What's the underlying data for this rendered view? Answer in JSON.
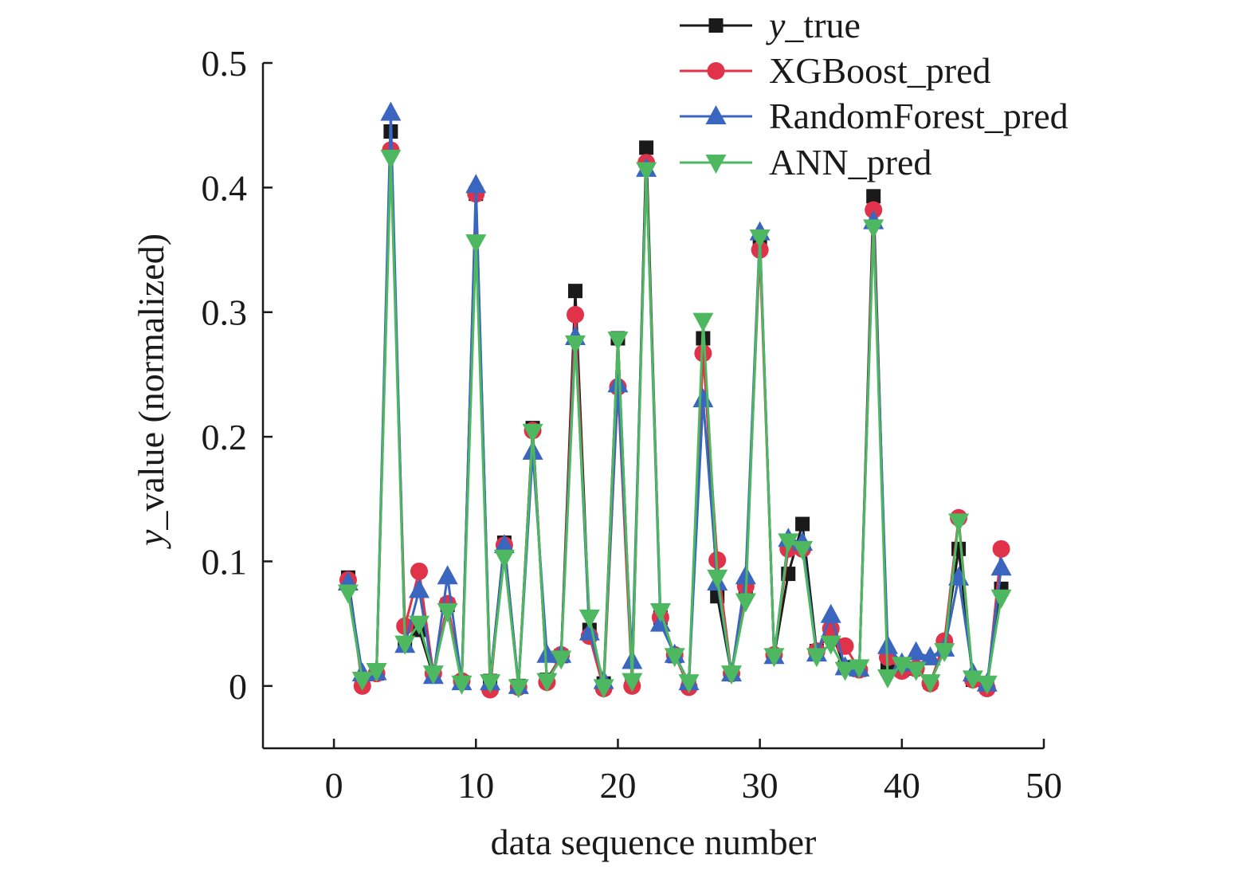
{
  "chart_data": {
    "type": "line",
    "xlabel": "data sequence number",
    "ylabel_italic": "y",
    "ylabel_rest": "_value (normalized)",
    "xlim": [
      -5,
      50
    ],
    "ylim": [
      -0.05,
      0.5
    ],
    "xticks": [
      0,
      10,
      20,
      30,
      40,
      50
    ],
    "xtick_labels": [
      "0",
      "10",
      "20",
      "30",
      "40",
      "50"
    ],
    "yticks": [
      0,
      0.1,
      0.2,
      0.3,
      0.4,
      0.5
    ],
    "ytick_labels": [
      "0",
      "0.1",
      "0.2",
      "0.3",
      "0.4",
      "0.5"
    ],
    "grid": false,
    "legend_position": "top-right",
    "x": [
      1,
      2,
      3,
      4,
      5,
      6,
      7,
      8,
      9,
      10,
      11,
      12,
      13,
      14,
      15,
      16,
      17,
      18,
      19,
      20,
      21,
      22,
      23,
      24,
      25,
      26,
      27,
      28,
      29,
      30,
      31,
      32,
      33,
      34,
      35,
      36,
      37,
      38,
      39,
      40,
      41,
      42,
      43,
      44,
      45,
      46,
      47
    ],
    "series": [
      {
        "name_italic": "y",
        "name_rest": "_true",
        "color": "#1a1a1a",
        "marker": "square",
        "values": [
          0.087,
          0.005,
          0.01,
          0.445,
          0.033,
          0.045,
          0.008,
          0.065,
          0.003,
          0.395,
          0.004,
          0.115,
          0.0,
          0.207,
          0.005,
          0.024,
          0.317,
          0.045,
          0.002,
          0.279,
          0.002,
          0.432,
          0.055,
          0.024,
          0.002,
          0.279,
          0.072,
          0.01,
          0.08,
          0.36,
          0.024,
          0.09,
          0.13,
          0.028,
          0.044,
          0.015,
          0.013,
          0.393,
          0.014,
          0.013,
          0.014,
          0.003,
          0.033,
          0.11,
          0.005,
          0.0,
          0.078
        ]
      },
      {
        "name": "XGBoost_pred",
        "color": "#e03248",
        "marker": "circle",
        "values": [
          0.085,
          0.0,
          0.01,
          0.43,
          0.048,
          0.092,
          0.01,
          0.066,
          0.004,
          0.395,
          -0.003,
          0.113,
          -0.001,
          0.205,
          0.003,
          0.025,
          0.298,
          0.04,
          -0.002,
          0.24,
          0.0,
          0.42,
          0.055,
          0.025,
          -0.001,
          0.267,
          0.101,
          0.01,
          0.08,
          0.35,
          0.025,
          0.11,
          0.11,
          0.028,
          0.046,
          0.032,
          0.013,
          0.382,
          0.023,
          0.012,
          0.014,
          0.002,
          0.036,
          0.135,
          0.005,
          -0.002,
          0.11
        ]
      },
      {
        "name": "RandomForest_pred",
        "color": "#3a66c0",
        "marker": "triangle-up",
        "values": [
          0.083,
          0.01,
          0.011,
          0.46,
          0.033,
          0.077,
          0.008,
          0.088,
          0.003,
          0.402,
          0.003,
          0.113,
          0.0,
          0.188,
          0.025,
          0.025,
          0.28,
          0.043,
          0.004,
          0.242,
          0.02,
          0.415,
          0.05,
          0.025,
          0.003,
          0.23,
          0.083,
          0.01,
          0.088,
          0.364,
          0.024,
          0.118,
          0.115,
          0.026,
          0.057,
          0.015,
          0.014,
          0.373,
          0.032,
          0.018,
          0.027,
          0.023,
          0.03,
          0.087,
          0.01,
          0.002,
          0.095
        ]
      },
      {
        "name": "ANN_pred",
        "color": "#4db860",
        "marker": "triangle-down",
        "values": [
          0.075,
          0.005,
          0.012,
          0.424,
          0.034,
          0.05,
          0.01,
          0.06,
          0.002,
          0.356,
          0.003,
          0.103,
          -0.001,
          0.204,
          0.004,
          0.022,
          0.275,
          0.055,
          -0.001,
          0.278,
          0.004,
          0.414,
          0.06,
          0.024,
          0.003,
          0.293,
          0.087,
          0.01,
          0.068,
          0.36,
          0.024,
          0.116,
          0.11,
          0.024,
          0.034,
          0.013,
          0.015,
          0.368,
          0.007,
          0.017,
          0.013,
          0.003,
          0.028,
          0.132,
          0.006,
          0.002,
          0.071
        ]
      }
    ]
  }
}
